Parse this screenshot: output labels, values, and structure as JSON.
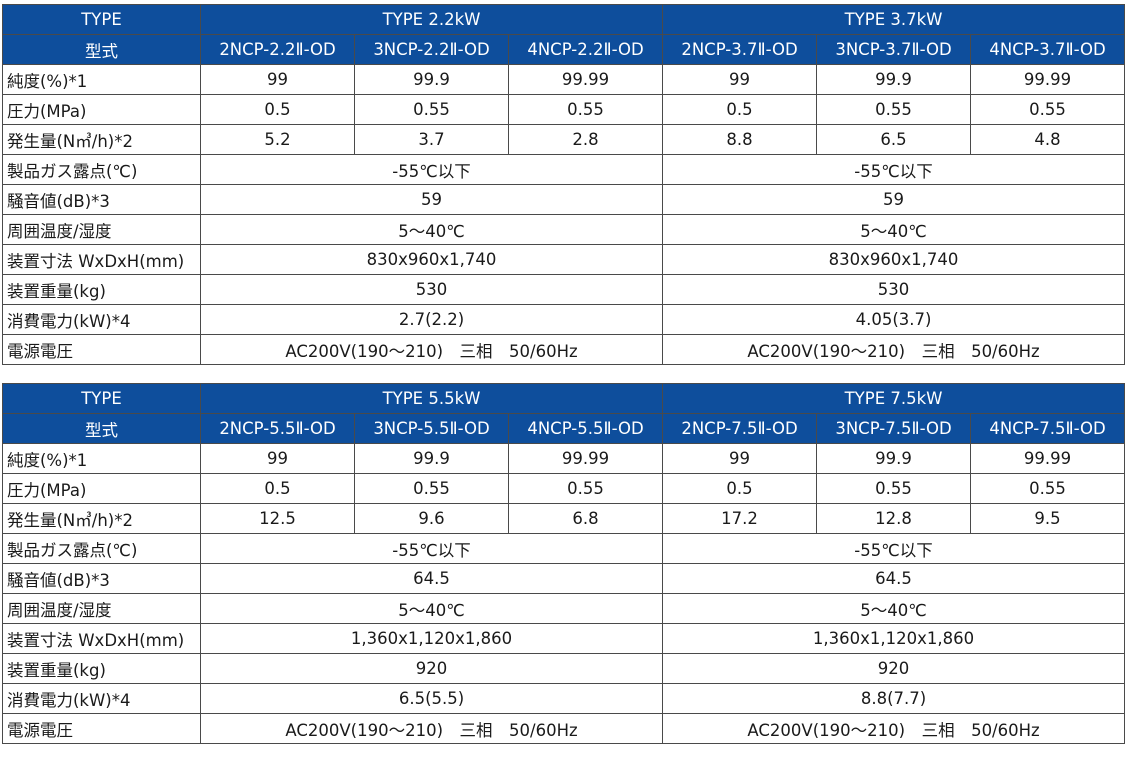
{
  "tables": [
    {
      "type_label": "TYPE",
      "groups": [
        "TYPE 2.2kW",
        "TYPE 3.7kW"
      ],
      "model_label": "型式",
      "models": [
        "2NCP-2.2Ⅱ-OD",
        "3NCP-2.2Ⅱ-OD",
        "4NCP-2.2Ⅱ-OD",
        "2NCP-3.7Ⅱ-OD",
        "3NCP-3.7Ⅱ-OD",
        "4NCP-3.7Ⅱ-OD"
      ],
      "per_model_rows": [
        {
          "label": "純度(%)*1",
          "values": [
            "99",
            "99.9",
            "99.99",
            "99",
            "99.9",
            "99.99"
          ]
        },
        {
          "label": "圧力(MPa)",
          "values": [
            "0.5",
            "0.55",
            "0.55",
            "0.5",
            "0.55",
            "0.55"
          ]
        },
        {
          "label": "発生量(N㎥/h)*2",
          "values": [
            "5.2",
            "3.7",
            "2.8",
            "8.8",
            "6.5",
            "4.8"
          ]
        }
      ],
      "per_group_rows": [
        {
          "label": "製品ガス露点(℃)",
          "values": [
            "-55℃以下",
            "-55℃以下"
          ]
        },
        {
          "label": "騒音値(dB)*3",
          "values": [
            "59",
            "59"
          ]
        },
        {
          "label": "周囲温度/湿度",
          "values": [
            "5～40℃",
            "5～40℃"
          ]
        },
        {
          "label": "装置寸法 WxDxH(mm)",
          "values": [
            "830x960x1,740",
            "830x960x1,740"
          ]
        },
        {
          "label": "装置重量(kg)",
          "values": [
            "530",
            "530"
          ]
        },
        {
          "label": "消費電力(kW)*4",
          "values": [
            "2.7(2.2)",
            "4.05(3.7)"
          ]
        },
        {
          "label": "電源電圧",
          "values": [
            "AC200V(190～210)　三相　50/60Hz",
            "AC200V(190～210)　三相　50/60Hz"
          ]
        }
      ]
    },
    {
      "type_label": "TYPE",
      "groups": [
        "TYPE 5.5kW",
        "TYPE 7.5kW"
      ],
      "model_label": "型式",
      "models": [
        "2NCP-5.5Ⅱ-OD",
        "3NCP-5.5Ⅱ-OD",
        "4NCP-5.5Ⅱ-OD",
        "2NCP-7.5Ⅱ-OD",
        "3NCP-7.5Ⅱ-OD",
        "4NCP-7.5Ⅱ-OD"
      ],
      "per_model_rows": [
        {
          "label": "純度(%)*1",
          "values": [
            "99",
            "99.9",
            "99.99",
            "99",
            "99.9",
            "99.99"
          ]
        },
        {
          "label": "圧力(MPa)",
          "values": [
            "0.5",
            "0.55",
            "0.55",
            "0.5",
            "0.55",
            "0.55"
          ]
        },
        {
          "label": "発生量(N㎥/h)*2",
          "values": [
            "12.5",
            "9.6",
            "6.8",
            "17.2",
            "12.8",
            "9.5"
          ]
        }
      ],
      "per_group_rows": [
        {
          "label": "製品ガス露点(℃)",
          "values": [
            "-55℃以下",
            "-55℃以下"
          ]
        },
        {
          "label": "騒音値(dB)*3",
          "values": [
            "64.5",
            "64.5"
          ]
        },
        {
          "label": "周囲温度/湿度",
          "values": [
            "5～40℃",
            "5～40℃"
          ]
        },
        {
          "label": "装置寸法 WxDxH(mm)",
          "values": [
            "1,360x1,120x1,860",
            "1,360x1,120x1,860"
          ]
        },
        {
          "label": "装置重量(kg)",
          "values": [
            "920",
            "920"
          ]
        },
        {
          "label": "消費電力(kW)*4",
          "values": [
            "6.5(5.5)",
            "8.8(7.7)"
          ]
        },
        {
          "label": "電源電圧",
          "values": [
            "AC200V(190～210)　三相　50/60Hz",
            "AC200V(190～210)　三相　50/60Hz"
          ]
        }
      ]
    }
  ],
  "colors": {
    "header_bg": "#0e4e9c",
    "header_text": "#ffffff",
    "border": "#4a4a4a"
  }
}
